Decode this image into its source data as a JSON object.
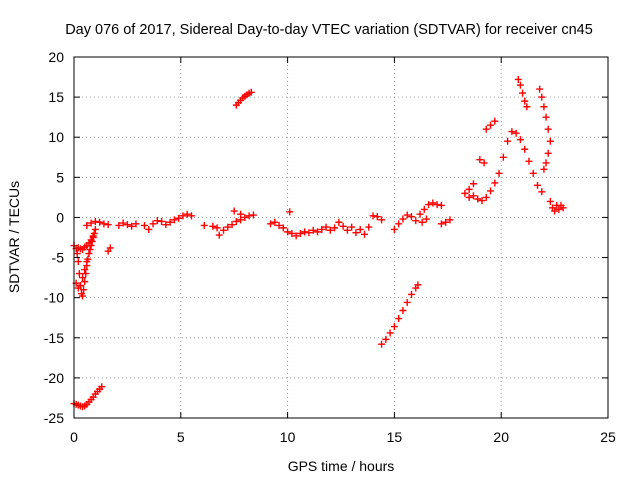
{
  "chart_data": {
    "type": "scatter",
    "title": "Day 076 of 2017, Sidereal Day-to-day VTEC variation (SDTVAR) for receiver cn45",
    "xlabel": "GPS time / hours",
    "ylabel": "SDTVAR / TECUs",
    "xlim": [
      0,
      25
    ],
    "ylim": [
      -25,
      20
    ],
    "xticks": [
      "0",
      "5",
      "10",
      "15",
      "20",
      "25"
    ],
    "yticks": [
      "-25",
      "-20",
      "-15",
      "-10",
      "-5",
      "0",
      "5",
      "10",
      "15",
      "20"
    ],
    "grid": true,
    "marker": "+",
    "color": "#ff0000",
    "series": [
      {
        "points": [
          [
            0.0,
            -23.2
          ],
          [
            0.1,
            -23.3
          ],
          [
            0.2,
            -23.4
          ],
          [
            0.3,
            -23.5
          ],
          [
            0.4,
            -23.6
          ],
          [
            0.5,
            -23.5
          ],
          [
            0.6,
            -23.3
          ],
          [
            0.7,
            -23.0
          ],
          [
            0.8,
            -22.7
          ],
          [
            0.9,
            -22.4
          ],
          [
            1.0,
            -22.0
          ],
          [
            1.1,
            -21.7
          ],
          [
            1.2,
            -21.4
          ],
          [
            1.3,
            -21.1
          ],
          [
            0.0,
            -3.5
          ],
          [
            0.1,
            -3.9
          ],
          [
            0.15,
            -4.5
          ],
          [
            0.2,
            -5.5
          ],
          [
            0.25,
            -7.0
          ],
          [
            0.3,
            -8.5
          ],
          [
            0.35,
            -9.5
          ],
          [
            0.4,
            -9.8
          ],
          [
            0.45,
            -9.0
          ],
          [
            0.5,
            -8.0
          ],
          [
            0.55,
            -7.0
          ],
          [
            0.6,
            -6.0
          ],
          [
            0.65,
            -5.2
          ],
          [
            0.7,
            -4.5
          ],
          [
            0.75,
            -4.0
          ],
          [
            0.8,
            -3.5
          ],
          [
            0.85,
            -3.0
          ],
          [
            0.9,
            -2.5
          ],
          [
            0.95,
            -2.0
          ],
          [
            1.0,
            -1.5
          ],
          [
            0.1,
            -8.2
          ],
          [
            0.2,
            -8.8
          ],
          [
            0.3,
            -8.5
          ],
          [
            0.4,
            -7.5
          ],
          [
            0.5,
            -6.5
          ],
          [
            0.6,
            -5.5
          ],
          [
            0.2,
            -3.8
          ],
          [
            0.3,
            -3.9
          ],
          [
            0.4,
            -4.0
          ],
          [
            0.5,
            -3.7
          ],
          [
            0.6,
            -3.5
          ],
          [
            0.7,
            -3.2
          ],
          [
            0.8,
            -2.8
          ],
          [
            0.9,
            -2.3
          ],
          [
            0.6,
            -1.0
          ],
          [
            0.8,
            -0.7
          ],
          [
            1.0,
            -0.5
          ],
          [
            1.2,
            -0.6
          ],
          [
            1.4,
            -0.8
          ],
          [
            1.6,
            -0.9
          ],
          [
            1.7,
            -3.8
          ],
          [
            1.6,
            -4.2
          ],
          [
            2.1,
            -1.0
          ],
          [
            2.3,
            -0.7
          ],
          [
            2.5,
            -0.9
          ],
          [
            2.7,
            -1.1
          ],
          [
            2.9,
            -0.8
          ],
          [
            3.3,
            -1.0
          ],
          [
            3.5,
            -1.5
          ],
          [
            3.7,
            -0.8
          ],
          [
            3.9,
            -0.4
          ],
          [
            4.1,
            -0.5
          ],
          [
            4.3,
            -0.9
          ],
          [
            4.5,
            -0.6
          ],
          [
            4.7,
            -0.3
          ],
          [
            4.9,
            -0.1
          ],
          [
            5.1,
            0.2
          ],
          [
            5.3,
            0.4
          ],
          [
            5.5,
            0.2
          ],
          [
            6.1,
            -1.0
          ],
          [
            6.5,
            -1.1
          ],
          [
            6.7,
            -1.3
          ],
          [
            6.8,
            -2.2
          ],
          [
            7.0,
            -1.6
          ],
          [
            7.2,
            -1.2
          ],
          [
            7.4,
            -0.9
          ],
          [
            7.6,
            -0.5
          ],
          [
            7.8,
            -0.3
          ],
          [
            8.0,
            0.0
          ],
          [
            8.2,
            0.2
          ],
          [
            8.4,
            0.3
          ],
          [
            7.5,
            0.8
          ],
          [
            7.8,
            0.4
          ],
          [
            7.6,
            14.0
          ],
          [
            7.7,
            14.3
          ],
          [
            7.8,
            14.6
          ],
          [
            7.9,
            14.9
          ],
          [
            8.0,
            15.1
          ],
          [
            8.1,
            15.3
          ],
          [
            8.2,
            15.5
          ],
          [
            8.3,
            15.6
          ],
          [
            9.2,
            -0.8
          ],
          [
            9.4,
            -0.6
          ],
          [
            9.6,
            -1.0
          ],
          [
            9.8,
            -1.3
          ],
          [
            10.0,
            -1.8
          ],
          [
            10.1,
            0.7
          ],
          [
            10.2,
            -2.0
          ],
          [
            10.4,
            -2.3
          ],
          [
            10.6,
            -2.0
          ],
          [
            10.8,
            -1.8
          ],
          [
            11.0,
            -1.9
          ],
          [
            11.2,
            -1.6
          ],
          [
            11.4,
            -1.8
          ],
          [
            11.6,
            -1.5
          ],
          [
            11.8,
            -1.2
          ],
          [
            12.0,
            -1.6
          ],
          [
            12.2,
            -1.3
          ],
          [
            12.4,
            -0.6
          ],
          [
            12.6,
            -1.1
          ],
          [
            12.8,
            -1.6
          ],
          [
            13.0,
            -1.2
          ],
          [
            13.2,
            -1.9
          ],
          [
            13.4,
            -1.5
          ],
          [
            13.6,
            -2.1
          ],
          [
            13.8,
            -1.2
          ],
          [
            14.0,
            0.2
          ],
          [
            14.2,
            0.1
          ],
          [
            14.4,
            -0.3
          ],
          [
            14.4,
            -15.8
          ],
          [
            14.6,
            -15.2
          ],
          [
            14.8,
            -14.4
          ],
          [
            15.0,
            -13.6
          ],
          [
            15.2,
            -12.6
          ],
          [
            15.4,
            -11.6
          ],
          [
            15.6,
            -10.6
          ],
          [
            15.8,
            -9.6
          ],
          [
            16.0,
            -8.8
          ],
          [
            16.1,
            -8.4
          ],
          [
            15.0,
            -1.5
          ],
          [
            15.2,
            -0.8
          ],
          [
            15.4,
            -0.2
          ],
          [
            15.6,
            0.3
          ],
          [
            15.8,
            0.1
          ],
          [
            16.0,
            -0.4
          ],
          [
            16.2,
            0.4
          ],
          [
            16.4,
            1.0
          ],
          [
            16.6,
            1.6
          ],
          [
            16.8,
            1.8
          ],
          [
            17.0,
            1.6
          ],
          [
            17.2,
            1.5
          ],
          [
            16.3,
            -0.6
          ],
          [
            16.5,
            -0.2
          ],
          [
            17.2,
            -0.8
          ],
          [
            17.4,
            -0.6
          ],
          [
            17.6,
            -0.3
          ],
          [
            18.3,
            3.0
          ],
          [
            18.5,
            3.5
          ],
          [
            18.7,
            4.2
          ],
          [
            18.5,
            2.5
          ],
          [
            18.7,
            2.7
          ],
          [
            18.9,
            2.3
          ],
          [
            19.1,
            2.1
          ],
          [
            19.3,
            2.5
          ],
          [
            19.5,
            3.3
          ],
          [
            19.7,
            4.3
          ],
          [
            19.9,
            5.5
          ],
          [
            20.1,
            7.5
          ],
          [
            20.3,
            9.5
          ],
          [
            20.5,
            10.7
          ],
          [
            20.7,
            10.5
          ],
          [
            20.9,
            9.7
          ],
          [
            21.1,
            8.5
          ],
          [
            21.3,
            7.0
          ],
          [
            21.5,
            5.5
          ],
          [
            21.7,
            4.0
          ],
          [
            21.9,
            3.2
          ],
          [
            19.0,
            7.2
          ],
          [
            19.2,
            6.8
          ],
          [
            19.3,
            11.0
          ],
          [
            19.5,
            11.5
          ],
          [
            19.7,
            12.0
          ],
          [
            20.8,
            17.2
          ],
          [
            20.9,
            16.5
          ],
          [
            21.0,
            15.5
          ],
          [
            21.1,
            14.5
          ],
          [
            21.2,
            13.8
          ],
          [
            21.8,
            16.0
          ],
          [
            21.9,
            15.0
          ],
          [
            22.0,
            13.8
          ],
          [
            22.1,
            12.5
          ],
          [
            22.2,
            11.0
          ],
          [
            22.3,
            9.5
          ],
          [
            22.2,
            8.0
          ],
          [
            22.1,
            6.8
          ],
          [
            22.0,
            6.0
          ],
          [
            22.3,
            2.0
          ],
          [
            22.4,
            1.2
          ],
          [
            22.5,
            0.8
          ],
          [
            22.6,
            1.5
          ],
          [
            22.7,
            1.0
          ],
          [
            22.8,
            1.5
          ],
          [
            22.9,
            1.2
          ]
        ]
      }
    ]
  }
}
